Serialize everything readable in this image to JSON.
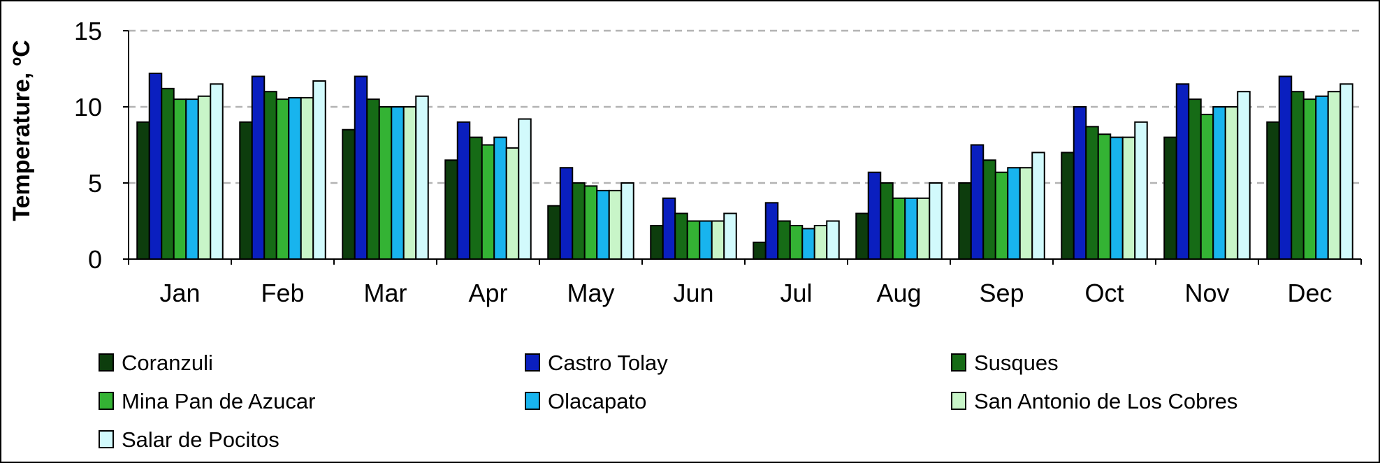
{
  "chart_data": {
    "type": "bar",
    "title": "",
    "xlabel": "",
    "ylabel": "Temperature, ºC",
    "ylim": [
      0,
      15
    ],
    "yticks": [
      "0",
      "5",
      "10",
      "15"
    ],
    "grid": "horizontal dashed at 5, 10, 15",
    "legend_position": "bottom",
    "categories": [
      "Jan",
      "Feb",
      "Mar",
      "Apr",
      "May",
      "Jun",
      "Jul",
      "Aug",
      "Sep",
      "Oct",
      "Nov",
      "Dec"
    ],
    "series": [
      {
        "name": "Coranzuli",
        "color": "#0d3d0d",
        "values": [
          9.0,
          9.0,
          8.5,
          6.5,
          3.5,
          2.2,
          1.1,
          3.0,
          5.0,
          7.0,
          8.0,
          9.0
        ]
      },
      {
        "name": "Castro Tolay",
        "color": "#0a1fbf",
        "values": [
          12.2,
          12.0,
          12.0,
          9.0,
          6.0,
          4.0,
          3.7,
          5.7,
          7.5,
          10.0,
          11.5,
          12.0
        ]
      },
      {
        "name": "Susques",
        "color": "#166b16",
        "values": [
          11.2,
          11.0,
          10.5,
          8.0,
          5.0,
          3.0,
          2.5,
          5.0,
          6.5,
          8.7,
          10.5,
          11.0
        ]
      },
      {
        "name": "Mina Pan de Azucar",
        "color": "#34b334",
        "values": [
          10.5,
          10.5,
          10.0,
          7.5,
          4.8,
          2.5,
          2.2,
          4.0,
          5.7,
          8.2,
          9.5,
          10.5
        ]
      },
      {
        "name": "Olacapato",
        "color": "#18b4ee",
        "values": [
          10.5,
          10.6,
          10.0,
          8.0,
          4.5,
          2.5,
          2.0,
          4.0,
          6.0,
          8.0,
          10.0,
          10.7
        ]
      },
      {
        "name": "San Antonio de Los Cobres",
        "color": "#c8f5c8",
        "values": [
          10.7,
          10.6,
          10.0,
          7.3,
          4.5,
          2.5,
          2.2,
          4.0,
          6.0,
          8.0,
          10.0,
          11.0
        ]
      },
      {
        "name": "Salar de Pocitos",
        "color": "#d2fafc",
        "values": [
          11.5,
          11.7,
          10.7,
          9.2,
          5.0,
          3.0,
          2.5,
          5.0,
          7.0,
          9.0,
          11.0,
          11.5
        ]
      }
    ]
  }
}
